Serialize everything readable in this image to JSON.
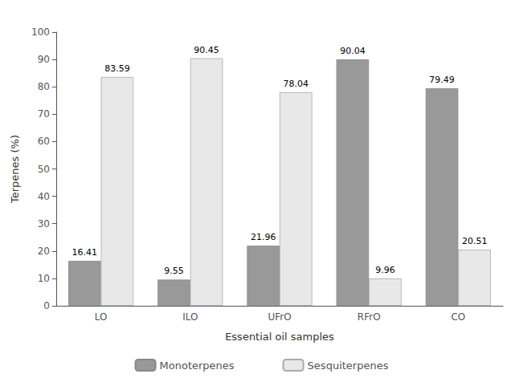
{
  "chart_data": {
    "type": "bar",
    "categories": [
      "LO",
      "ILO",
      "UFrO",
      "RFrO",
      "CO"
    ],
    "series": [
      {
        "name": "Monoterpenes",
        "color": "#999999",
        "values": [
          16.41,
          9.55,
          21.96,
          90.04,
          79.49
        ]
      },
      {
        "name": "Sesquiterpenes",
        "color": "#e8e8e8",
        "values": [
          83.59,
          90.45,
          78.04,
          9.96,
          20.51
        ]
      }
    ],
    "xlabel": "Essential oil samples",
    "ylabel": "Terpenes (%)",
    "ylim": [
      0,
      100
    ],
    "yticks": [
      0,
      10,
      20,
      30,
      40,
      50,
      60,
      70,
      80,
      90,
      100
    ],
    "grid": false,
    "legend": "bottom",
    "data_labels": true
  }
}
